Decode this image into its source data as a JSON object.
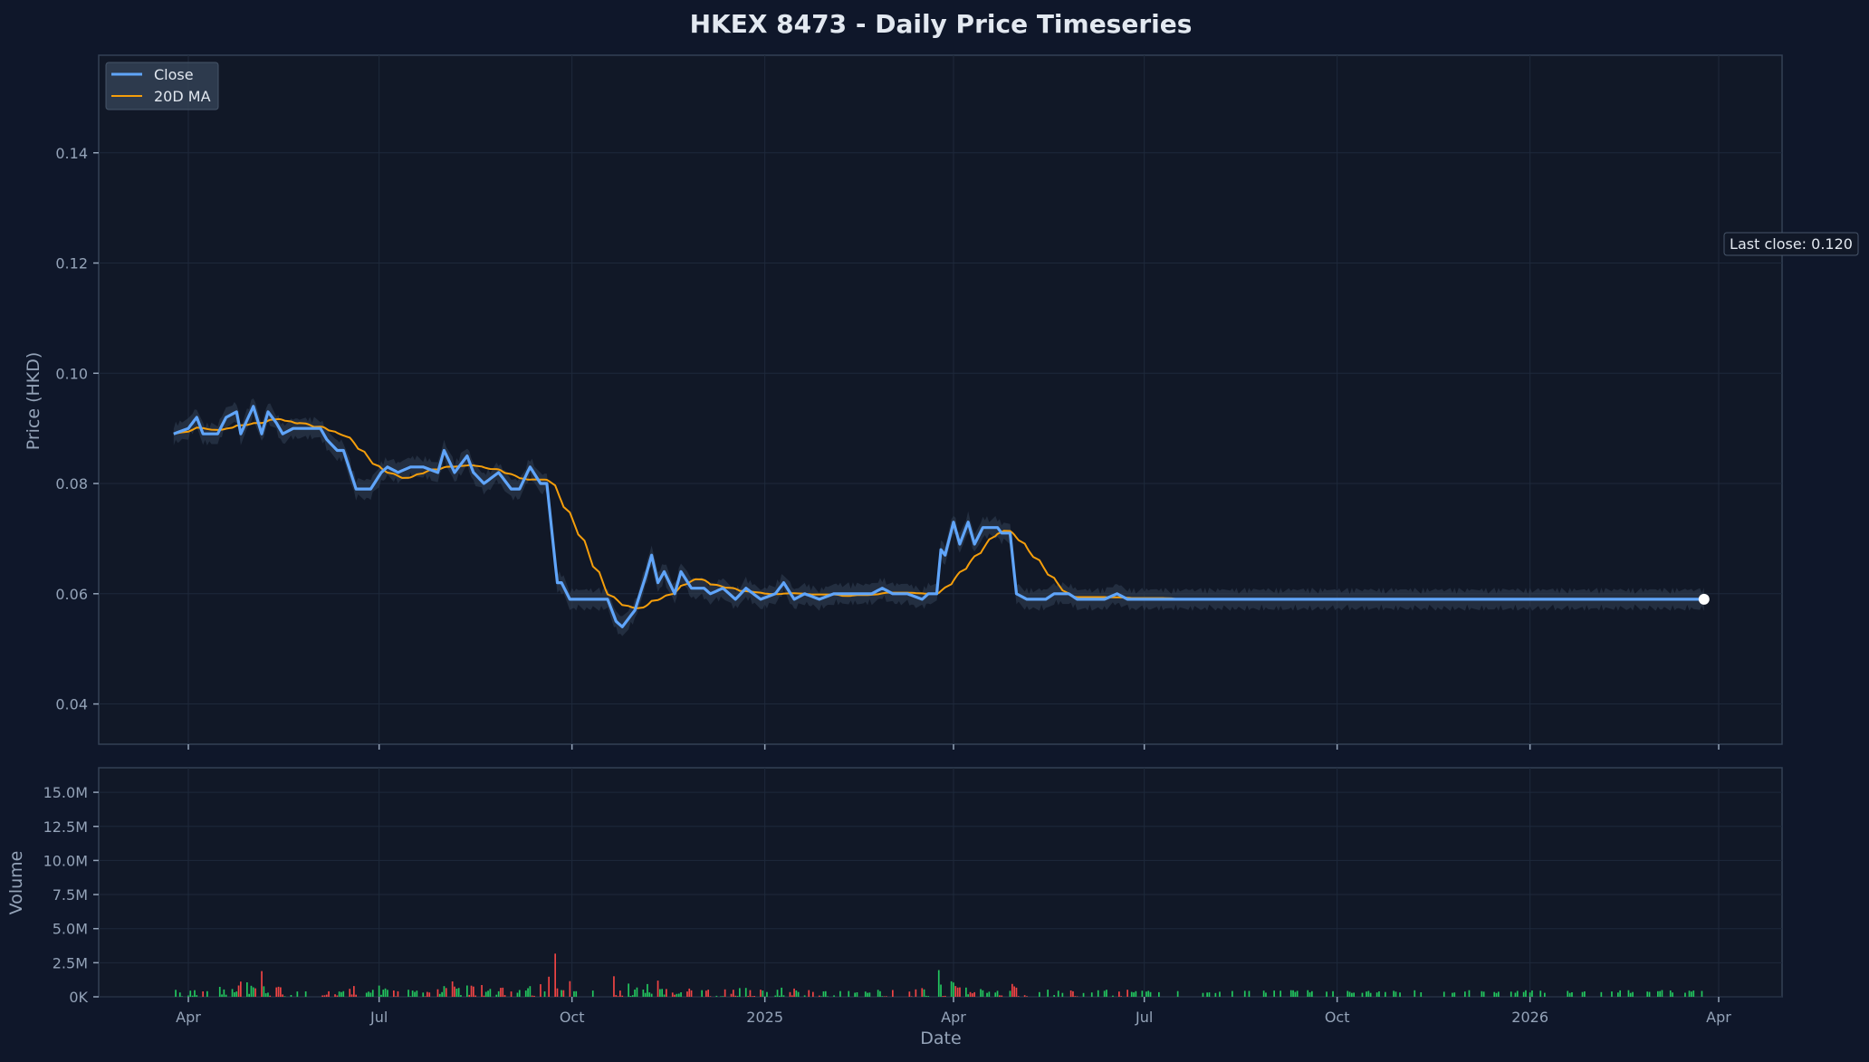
{
  "chart_data": {
    "type": "line",
    "title": "HKEX 8473 - Daily Price Timeseries",
    "xlabel": "Date",
    "ylabel": "Price (HKD)",
    "volume_ylabel": "Volume",
    "date_range": [
      "2024-03-25",
      "2026-03-25"
    ],
    "x_ticks": [
      {
        "date": "2024-04-01",
        "label": "Apr"
      },
      {
        "date": "2024-07-01",
        "label": "Jul"
      },
      {
        "date": "2024-10-01",
        "label": "Oct"
      },
      {
        "date": "2025-01-01",
        "label": "2025"
      },
      {
        "date": "2025-04-01",
        "label": "Apr"
      },
      {
        "date": "2025-07-01",
        "label": "Jul"
      },
      {
        "date": "2025-10-01",
        "label": "Oct"
      },
      {
        "date": "2026-01-01",
        "label": "2026"
      },
      {
        "date": "2026-04-01",
        "label": "Apr"
      }
    ],
    "price_axis": {
      "ylim": [
        0.0327,
        0.1577
      ],
      "ticks": [
        0.04,
        0.06,
        0.08,
        0.1,
        0.12,
        0.14
      ],
      "tick_labels": [
        "0.04",
        "0.06",
        "0.08",
        "0.10",
        "0.12",
        "0.14"
      ]
    },
    "volume_axis": {
      "ylim": [
        0,
        16800000
      ],
      "ticks": [
        0,
        2500000,
        5000000,
        7500000,
        10000000,
        12500000,
        15000000
      ],
      "tick_labels": [
        "0K",
        "2.5M",
        "5.0M",
        "7.5M",
        "10.0M",
        "12.5M",
        "15.0M"
      ]
    },
    "grid": true,
    "legend": {
      "position": "top-left",
      "entries": [
        "Close",
        "20D MA"
      ]
    },
    "annotation": "Last close: 0.120",
    "colors": {
      "background": "#0f172a",
      "plot_bg": "#111827",
      "close": "#60a5fa",
      "ma": "#f59e0b",
      "band": "#334155",
      "vol_up": "#22c55e",
      "vol_down": "#ef4444",
      "grid": "#1e293b",
      "spine": "#334155",
      "text": "#94a3b8",
      "title": "#e2e8f0"
    },
    "series": [
      {
        "name": "Close",
        "points": [
          [
            "2024-03-25",
            0.089
          ],
          [
            "2024-04-01",
            0.09
          ],
          [
            "2024-04-05",
            0.092
          ],
          [
            "2024-04-08",
            0.089
          ],
          [
            "2024-04-15",
            0.089
          ],
          [
            "2024-04-19",
            0.092
          ],
          [
            "2024-04-24",
            0.093
          ],
          [
            "2024-04-26",
            0.089
          ],
          [
            "2024-05-02",
            0.094
          ],
          [
            "2024-05-06",
            0.089
          ],
          [
            "2024-05-09",
            0.093
          ],
          [
            "2024-05-13",
            0.091
          ],
          [
            "2024-05-16",
            0.089
          ],
          [
            "2024-05-21",
            0.09
          ],
          [
            "2024-05-28",
            0.09
          ],
          [
            "2024-06-03",
            0.09
          ],
          [
            "2024-06-06",
            0.088
          ],
          [
            "2024-06-11",
            0.086
          ],
          [
            "2024-06-14",
            0.086
          ],
          [
            "2024-06-20",
            0.079
          ],
          [
            "2024-06-27",
            0.079
          ],
          [
            "2024-07-02",
            0.082
          ],
          [
            "2024-07-05",
            0.083
          ],
          [
            "2024-07-10",
            0.082
          ],
          [
            "2024-07-16",
            0.083
          ],
          [
            "2024-07-22",
            0.083
          ],
          [
            "2024-07-29",
            0.082
          ],
          [
            "2024-08-01",
            0.086
          ],
          [
            "2024-08-06",
            0.082
          ],
          [
            "2024-08-12",
            0.085
          ],
          [
            "2024-08-15",
            0.082
          ],
          [
            "2024-08-20",
            0.08
          ],
          [
            "2024-08-27",
            0.082
          ],
          [
            "2024-09-02",
            0.079
          ],
          [
            "2024-09-06",
            0.079
          ],
          [
            "2024-09-11",
            0.083
          ],
          [
            "2024-09-16",
            0.08
          ],
          [
            "2024-09-19",
            0.08
          ],
          [
            "2024-09-24",
            0.062
          ],
          [
            "2024-09-26",
            0.062
          ],
          [
            "2024-09-30",
            0.059
          ],
          [
            "2024-10-07",
            0.059
          ],
          [
            "2024-10-14",
            0.059
          ],
          [
            "2024-10-18",
            0.059
          ],
          [
            "2024-10-22",
            0.055
          ],
          [
            "2024-10-25",
            0.054
          ],
          [
            "2024-10-31",
            0.057
          ],
          [
            "2024-11-05",
            0.063
          ],
          [
            "2024-11-08",
            0.067
          ],
          [
            "2024-11-11",
            0.062
          ],
          [
            "2024-11-14",
            0.064
          ],
          [
            "2024-11-19",
            0.06
          ],
          [
            "2024-11-22",
            0.064
          ],
          [
            "2024-11-27",
            0.061
          ],
          [
            "2024-12-03",
            0.061
          ],
          [
            "2024-12-06",
            0.06
          ],
          [
            "2024-12-12",
            0.061
          ],
          [
            "2024-12-18",
            0.059
          ],
          [
            "2024-12-23",
            0.061
          ],
          [
            "2024-12-30",
            0.059
          ],
          [
            "2025-01-06",
            0.06
          ],
          [
            "2025-01-10",
            0.062
          ],
          [
            "2025-01-15",
            0.059
          ],
          [
            "2025-01-20",
            0.06
          ],
          [
            "2025-01-27",
            0.059
          ],
          [
            "2025-02-03",
            0.06
          ],
          [
            "2025-02-10",
            0.06
          ],
          [
            "2025-02-17",
            0.06
          ],
          [
            "2025-02-21",
            0.06
          ],
          [
            "2025-02-26",
            0.061
          ],
          [
            "2025-03-03",
            0.06
          ],
          [
            "2025-03-10",
            0.06
          ],
          [
            "2025-03-17",
            0.059
          ],
          [
            "2025-03-20",
            0.06
          ],
          [
            "2025-03-24",
            0.06
          ],
          [
            "2025-03-26",
            0.068
          ],
          [
            "2025-03-28",
            0.067
          ],
          [
            "2025-04-01",
            0.073
          ],
          [
            "2025-04-04",
            0.069
          ],
          [
            "2025-04-08",
            0.073
          ],
          [
            "2025-04-11",
            0.069
          ],
          [
            "2025-04-15",
            0.072
          ],
          [
            "2025-04-22",
            0.072
          ],
          [
            "2025-04-24",
            0.071
          ],
          [
            "2025-04-28",
            0.071
          ],
          [
            "2025-05-01",
            0.06
          ],
          [
            "2025-05-06",
            0.059
          ],
          [
            "2025-05-12",
            0.059
          ],
          [
            "2025-05-15",
            0.059
          ],
          [
            "2025-05-19",
            0.06
          ],
          [
            "2025-05-22",
            0.06
          ],
          [
            "2025-05-26",
            0.06
          ],
          [
            "2025-05-30",
            0.059
          ],
          [
            "2025-06-03",
            0.059
          ],
          [
            "2025-06-06",
            0.059
          ],
          [
            "2025-06-12",
            0.059
          ],
          [
            "2025-06-18",
            0.06
          ],
          [
            "2025-06-23",
            0.059
          ],
          [
            "2025-06-26",
            0.059
          ]
        ]
      }
    ]
  },
  "ui": {
    "legend_close": "Close",
    "legend_ma": "20D MA"
  }
}
